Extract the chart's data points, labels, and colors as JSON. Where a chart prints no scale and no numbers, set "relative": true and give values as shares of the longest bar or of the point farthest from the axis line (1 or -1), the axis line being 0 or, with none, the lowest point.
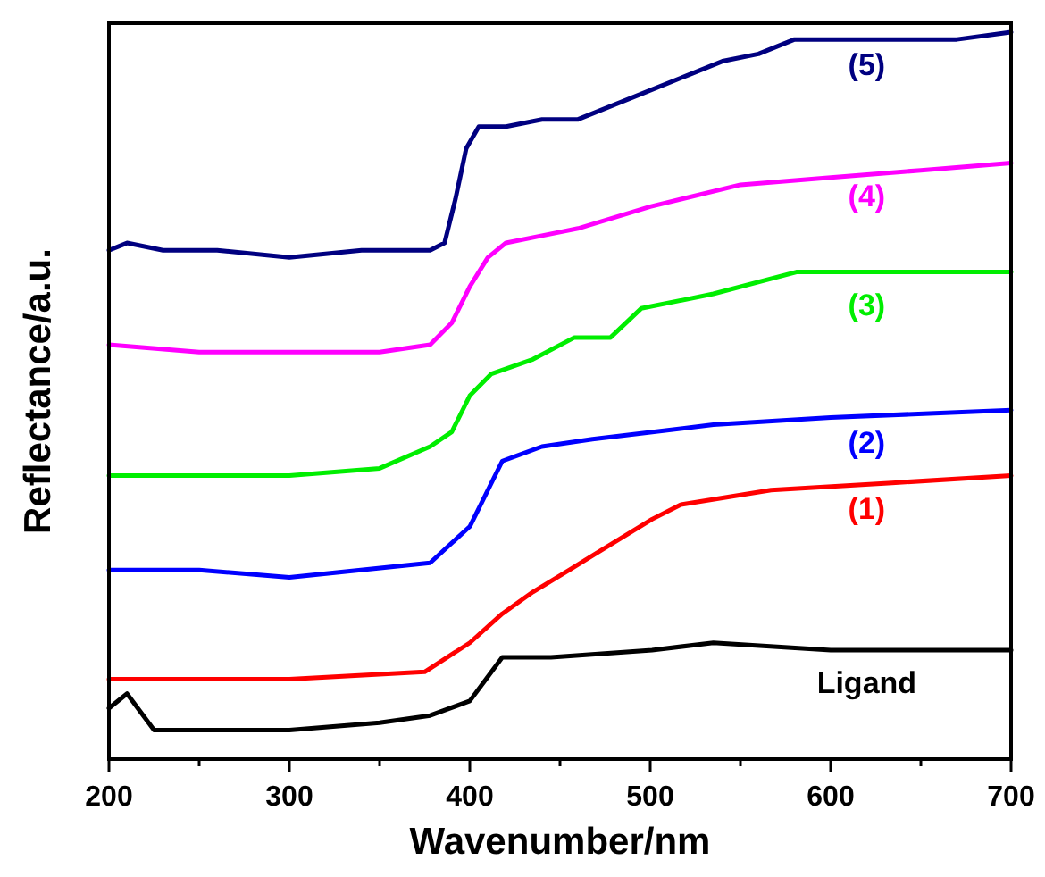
{
  "chart_data": {
    "type": "line",
    "relative": true,
    "xlabel": "Wavenumber/nm",
    "ylabel": "Reflectance/a.u.",
    "xlim": [
      200,
      700
    ],
    "xticks": [
      200,
      {
        "value": 250,
        "label": null
      },
      300,
      {
        "value": 350,
        "label": null
      },
      400,
      {
        "value": 450,
        "label": null
      },
      500,
      {
        "value": 550,
        "label": null
      },
      600,
      {
        "value": 650,
        "label": null
      },
      700
    ],
    "grid": false,
    "marker": "none",
    "line_style": "solid",
    "series": [
      {
        "name": "(5)",
        "color": "#000080",
        "x": [
          200,
          210,
          230,
          260,
          300,
          340,
          378,
          386,
          392,
          398,
          405,
          420,
          440,
          460,
          480,
          500,
          520,
          540,
          560,
          580,
          600,
          620,
          650,
          670,
          700
        ],
        "values": [
          0.7,
          0.71,
          0.7,
          0.7,
          0.69,
          0.7,
          0.7,
          0.71,
          0.77,
          0.84,
          0.87,
          0.87,
          0.88,
          0.88,
          0.9,
          0.92,
          0.94,
          0.96,
          0.97,
          0.99,
          0.99,
          0.99,
          0.99,
          0.99,
          1
        ]
      },
      {
        "name": "(4)",
        "color": "#ff00ff",
        "x": [
          200,
          250,
          300,
          350,
          378,
          390,
          400,
          410,
          420,
          440,
          460,
          500,
          550,
          600,
          650,
          700
        ],
        "values": [
          0.57,
          0.56,
          0.56,
          0.56,
          0.57,
          0.6,
          0.65,
          0.69,
          0.71,
          0.72,
          0.73,
          0.76,
          0.79,
          0.8,
          0.81,
          0.82
        ]
      },
      {
        "name": "(3)",
        "color": "#00ee00",
        "x": [
          200,
          250,
          300,
          350,
          378,
          390,
          400,
          412,
          435,
          458,
          478,
          495,
          535,
          581,
          634,
          700
        ],
        "values": [
          0.39,
          0.39,
          0.39,
          0.4,
          0.43,
          0.45,
          0.5,
          0.53,
          0.55,
          0.58,
          0.58,
          0.62,
          0.64,
          0.67,
          0.67,
          0.67
        ]
      },
      {
        "name": "(2)",
        "color": "#0000ff",
        "x": [
          200,
          250,
          300,
          378,
          400,
          418,
          440,
          468,
          535,
          600,
          700
        ],
        "values": [
          0.26,
          0.26,
          0.25,
          0.27,
          0.32,
          0.41,
          0.43,
          0.44,
          0.46,
          0.47,
          0.48
        ]
      },
      {
        "name": "(1)",
        "color": "#ff0000",
        "x": [
          200,
          300,
          375,
          400,
          418,
          435,
          455,
          468,
          501,
          517,
          567,
          634,
          700
        ],
        "values": [
          0.11,
          0.11,
          0.12,
          0.16,
          0.2,
          0.23,
          0.26,
          0.28,
          0.33,
          0.35,
          0.37,
          0.38,
          0.39
        ]
      },
      {
        "name": "Ligand",
        "color": "#000000",
        "x": [
          200,
          210,
          225,
          300,
          350,
          378,
          400,
          418,
          445,
          501,
          535,
          600,
          650,
          700
        ],
        "values": [
          0.07,
          0.09,
          0.04,
          0.04,
          0.05,
          0.06,
          0.08,
          0.14,
          0.14,
          0.15,
          0.16,
          0.15,
          0.15,
          0.15
        ]
      }
    ]
  }
}
